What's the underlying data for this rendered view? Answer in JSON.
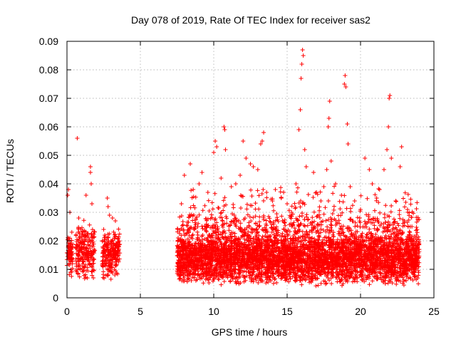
{
  "chart_data": {
    "type": "scatter",
    "title": "Day 078 of 2019, Rate Of TEC Index for receiver sas2",
    "xlabel": "GPS time / hours",
    "ylabel": "ROTI / TECUs",
    "xlim": [
      0,
      25
    ],
    "ylim": [
      0,
      0.09
    ],
    "xticks": [
      0,
      5,
      10,
      15,
      20,
      25
    ],
    "yticks": [
      0,
      0.01,
      0.02,
      0.03,
      0.04,
      0.05,
      0.06,
      0.07,
      0.08,
      0.09
    ],
    "grid": true,
    "marker": "plus",
    "color": "#ff0000",
    "series": [
      {
        "points": [
          [
            0.05,
            0.036
          ],
          [
            0.1,
            0.038
          ],
          [
            0.1,
            0.015
          ],
          [
            0.15,
            0.012
          ],
          [
            0.2,
            0.03
          ],
          [
            0.2,
            0.02
          ],
          [
            0.25,
            0.009
          ],
          [
            0.3,
            0.017
          ],
          [
            0.7,
            0.056
          ],
          [
            0.8,
            0.028
          ],
          [
            0.85,
            0.018
          ],
          [
            0.9,
            0.01
          ],
          [
            1.0,
            0.014
          ],
          [
            1.1,
            0.022
          ],
          [
            1.3,
            0.036
          ],
          [
            1.6,
            0.046
          ],
          [
            1.6,
            0.044
          ],
          [
            1.65,
            0.04
          ],
          [
            1.7,
            0.033
          ],
          [
            1.7,
            0.021
          ],
          [
            1.75,
            0.012
          ],
          [
            1.8,
            0.007
          ],
          [
            2.5,
            0.024
          ],
          [
            2.6,
            0.016
          ],
          [
            2.7,
            0.012
          ],
          [
            2.8,
            0.008
          ],
          [
            2.75,
            0.035
          ],
          [
            2.8,
            0.032
          ],
          [
            2.9,
            0.029
          ],
          [
            3.0,
            0.02
          ],
          [
            3.1,
            0.028
          ],
          [
            3.2,
            0.014
          ],
          [
            3.3,
            0.027
          ],
          [
            3.5,
            0.018
          ],
          [
            7.8,
            0.033
          ],
          [
            8.0,
            0.043
          ],
          [
            8.4,
            0.047
          ],
          [
            8.6,
            0.038
          ],
          [
            9.0,
            0.04
          ],
          [
            9.2,
            0.044
          ],
          [
            9.6,
            0.037
          ],
          [
            10.0,
            0.051
          ],
          [
            10.1,
            0.055
          ],
          [
            10.2,
            0.053
          ],
          [
            10.5,
            0.042
          ],
          [
            10.7,
            0.06
          ],
          [
            10.75,
            0.059
          ],
          [
            10.8,
            0.052
          ],
          [
            11.2,
            0.039
          ],
          [
            11.5,
            0.04
          ],
          [
            11.8,
            0.043
          ],
          [
            12.0,
            0.055
          ],
          [
            12.2,
            0.049
          ],
          [
            12.5,
            0.047
          ],
          [
            12.7,
            0.046
          ],
          [
            13.0,
            0.045
          ],
          [
            13.2,
            0.054
          ],
          [
            13.3,
            0.055
          ],
          [
            13.4,
            0.058
          ],
          [
            13.6,
            0.037
          ],
          [
            14.0,
            0.034
          ],
          [
            14.2,
            0.038
          ],
          [
            14.6,
            0.035
          ],
          [
            15.0,
            0.033
          ],
          [
            15.3,
            0.03
          ],
          [
            15.6,
            0.04
          ],
          [
            15.8,
            0.059
          ],
          [
            15.9,
            0.066
          ],
          [
            15.95,
            0.077
          ],
          [
            16.0,
            0.082
          ],
          [
            16.05,
            0.087
          ],
          [
            16.1,
            0.085
          ],
          [
            16.2,
            0.052
          ],
          [
            16.3,
            0.046
          ],
          [
            16.8,
            0.044
          ],
          [
            17.0,
            0.037
          ],
          [
            17.3,
            0.034
          ],
          [
            17.5,
            0.039
          ],
          [
            17.7,
            0.045
          ],
          [
            17.8,
            0.06
          ],
          [
            17.85,
            0.063
          ],
          [
            17.9,
            0.069
          ],
          [
            18.0,
            0.048
          ],
          [
            18.3,
            0.04
          ],
          [
            18.7,
            0.036
          ],
          [
            18.9,
            0.075
          ],
          [
            18.95,
            0.078
          ],
          [
            19.0,
            0.074
          ],
          [
            19.1,
            0.061
          ],
          [
            19.15,
            0.054
          ],
          [
            19.3,
            0.039
          ],
          [
            19.6,
            0.034
          ],
          [
            20.0,
            0.031
          ],
          [
            20.3,
            0.049
          ],
          [
            20.6,
            0.045
          ],
          [
            20.8,
            0.04
          ],
          [
            21.1,
            0.035
          ],
          [
            21.3,
            0.038
          ],
          [
            21.6,
            0.045
          ],
          [
            21.8,
            0.052
          ],
          [
            21.9,
            0.06
          ],
          [
            21.95,
            0.07
          ],
          [
            22.0,
            0.071
          ],
          [
            22.1,
            0.049
          ],
          [
            22.4,
            0.034
          ],
          [
            22.7,
            0.046
          ],
          [
            22.8,
            0.053
          ],
          [
            23.0,
            0.027
          ],
          [
            23.2,
            0.031
          ],
          [
            23.5,
            0.025
          ],
          [
            23.8,
            0.022
          ]
        ],
        "bands": [
          {
            "x": [
              0.0,
              0.4
            ],
            "y": [
              0.006,
              0.025
            ],
            "n": 70
          },
          {
            "x": [
              0.6,
              1.2
            ],
            "y": [
              0.006,
              0.028
            ],
            "n": 110
          },
          {
            "x": [
              1.2,
              1.9
            ],
            "y": [
              0.006,
              0.026
            ],
            "n": 110
          },
          {
            "x": [
              2.4,
              3.1
            ],
            "y": [
              0.006,
              0.024
            ],
            "n": 130
          },
          {
            "x": [
              3.1,
              3.6
            ],
            "y": [
              0.007,
              0.025
            ],
            "n": 90
          },
          {
            "x": [
              7.5,
              24.0
            ],
            "y": [
              0.004,
              0.022
            ],
            "n": 3200
          },
          {
            "x": [
              7.5,
              24.0
            ],
            "y": [
              0.006,
              0.03
            ],
            "n": 1500
          },
          {
            "x": [
              8.0,
              24.0
            ],
            "y": [
              0.015,
              0.04
            ],
            "n": 380
          }
        ]
      }
    ]
  }
}
